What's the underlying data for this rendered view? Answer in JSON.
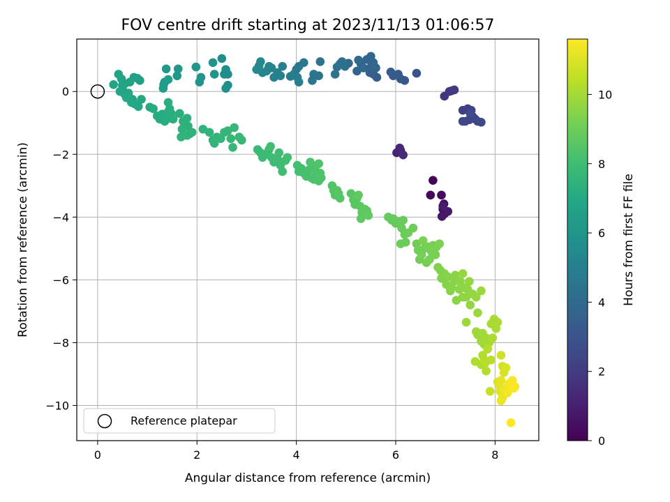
{
  "chart_data": {
    "type": "scatter",
    "title": "FOV centre drift starting at 2023/11/13 01:06:57",
    "xlabel": "Angular distance from reference (arcmin)",
    "ylabel": "Rotation from reference (arcmin)",
    "xlim": [
      -0.42,
      8.88
    ],
    "ylim": [
      -11.12,
      1.67
    ],
    "xticks": [
      0,
      2,
      4,
      6,
      8
    ],
    "yticks": [
      -10,
      -8,
      -6,
      -4,
      -2,
      0
    ],
    "grid": true,
    "legend": {
      "placement": "lower-left",
      "entries": [
        "Reference platepar"
      ]
    },
    "reference_point": {
      "name": "Reference platepar",
      "x": 0,
      "y": 0
    },
    "colorbar": {
      "label": "Hours from first FF file",
      "colormap": "viridis",
      "range": [
        0,
        11.6
      ],
      "ticks": [
        0,
        2,
        4,
        6,
        8,
        10
      ]
    },
    "points": [
      [
        6.75,
        -2.83,
        0.1
      ],
      [
        6.7,
        -3.3,
        0.2
      ],
      [
        6.92,
        -3.3,
        0.3
      ],
      [
        6.97,
        -3.58,
        0.4
      ],
      [
        6.95,
        -3.75,
        0.5
      ],
      [
        6.98,
        -3.9,
        0.6
      ],
      [
        6.93,
        -3.98,
        0.7
      ],
      [
        7.05,
        -3.82,
        0.8
      ],
      [
        6.95,
        -3.65,
        0.9
      ],
      [
        6.02,
        -1.95,
        1.1
      ],
      [
        6.08,
        -1.8,
        1.2
      ],
      [
        6.1,
        -1.88,
        1.3
      ],
      [
        6.15,
        -2.02,
        1.4
      ],
      [
        6.98,
        -0.15,
        1.7
      ],
      [
        7.08,
        0.0,
        1.8
      ],
      [
        7.12,
        0.02,
        1.9
      ],
      [
        7.18,
        0.05,
        2.0
      ],
      [
        7.35,
        -0.6,
        2.1
      ],
      [
        7.45,
        -0.55,
        2.15
      ],
      [
        7.52,
        -0.6,
        2.2
      ],
      [
        7.55,
        -0.8,
        2.25
      ],
      [
        7.48,
        -0.9,
        2.3
      ],
      [
        7.4,
        -0.95,
        2.35
      ],
      [
        7.6,
        -0.88,
        2.4
      ],
      [
        7.65,
        -0.95,
        2.45
      ],
      [
        7.72,
        -0.98,
        2.5
      ],
      [
        7.35,
        -0.95,
        2.55
      ],
      [
        7.5,
        -0.7,
        2.6
      ],
      [
        6.42,
        0.58,
        3.0
      ],
      [
        6.1,
        0.4,
        3.1
      ],
      [
        6.18,
        0.35,
        3.2
      ],
      [
        6.05,
        0.55,
        3.25
      ],
      [
        5.95,
        0.5,
        3.3
      ],
      [
        5.9,
        0.62,
        3.35
      ],
      [
        5.62,
        0.45,
        3.4
      ],
      [
        5.55,
        0.55,
        3.45
      ],
      [
        5.48,
        0.6,
        3.5
      ],
      [
        5.5,
        0.78,
        3.55
      ],
      [
        5.3,
        0.88,
        3.6
      ],
      [
        5.22,
        0.65,
        3.65
      ],
      [
        5.42,
        1.02,
        3.7
      ],
      [
        5.5,
        1.12,
        3.75
      ],
      [
        5.55,
        0.92,
        3.8
      ],
      [
        5.6,
        0.75,
        3.85
      ],
      [
        5.35,
        0.75,
        3.9
      ],
      [
        5.25,
        1.0,
        3.95
      ],
      [
        5.05,
        0.9,
        4.0
      ],
      [
        4.98,
        0.8,
        4.1
      ],
      [
        4.92,
        0.95,
        4.15
      ],
      [
        4.95,
        0.85,
        4.2
      ],
      [
        4.88,
        0.88,
        4.25
      ],
      [
        4.82,
        0.78,
        4.3
      ],
      [
        4.78,
        0.55,
        4.35
      ],
      [
        4.48,
        0.95,
        4.4
      ],
      [
        4.45,
        0.5,
        4.45
      ],
      [
        4.35,
        0.55,
        4.5
      ],
      [
        4.32,
        0.35,
        4.55
      ],
      [
        4.15,
        0.92,
        4.6
      ],
      [
        4.05,
        0.8,
        4.65
      ],
      [
        4.0,
        0.7,
        4.7
      ],
      [
        3.95,
        0.55,
        4.75
      ],
      [
        3.88,
        0.48,
        4.8
      ],
      [
        4.02,
        0.45,
        4.85
      ],
      [
        4.05,
        0.3,
        4.9
      ],
      [
        3.72,
        0.8,
        4.95
      ],
      [
        3.68,
        0.5,
        5.0
      ],
      [
        3.62,
        0.6,
        5.05
      ],
      [
        3.55,
        0.45,
        5.1
      ],
      [
        3.5,
        0.75,
        5.15
      ],
      [
        3.45,
        0.8,
        5.2
      ],
      [
        3.4,
        0.65,
        5.25
      ],
      [
        3.32,
        0.6,
        5.3
      ],
      [
        3.28,
        0.95,
        5.35
      ],
      [
        3.25,
        0.82,
        5.4
      ],
      [
        3.2,
        0.7,
        5.45
      ],
      [
        2.62,
        0.55,
        5.55
      ],
      [
        2.58,
        0.7,
        5.6
      ],
      [
        2.55,
        0.55,
        5.65
      ],
      [
        2.5,
        1.05,
        5.7
      ],
      [
        2.62,
        0.2,
        5.75
      ],
      [
        2.58,
        0.1,
        5.8
      ],
      [
        2.32,
        0.92,
        5.85
      ],
      [
        2.35,
        0.55,
        5.9
      ],
      [
        2.08,
        0.45,
        5.95
      ],
      [
        2.05,
        0.3,
        6.0
      ],
      [
        1.98,
        0.78,
        6.05
      ],
      [
        1.62,
        0.72,
        6.1
      ],
      [
        1.6,
        0.5,
        6.15
      ],
      [
        1.38,
        0.72,
        6.2
      ],
      [
        1.35,
        0.3,
        6.25
      ],
      [
        1.33,
        0.22,
        6.3
      ],
      [
        1.32,
        0.1,
        6.35
      ],
      [
        1.42,
        0.38,
        6.4
      ],
      [
        0.8,
        0.42,
        6.5
      ],
      [
        0.85,
        0.35,
        6.55
      ],
      [
        0.73,
        0.45,
        6.6
      ],
      [
        0.65,
        0.3,
        6.65
      ],
      [
        0.55,
        0.25,
        6.7
      ],
      [
        0.5,
        0.2,
        6.72
      ],
      [
        0.48,
        0.4,
        6.74
      ],
      [
        0.42,
        0.55,
        6.76
      ],
      [
        0.32,
        0.22,
        6.78
      ],
      [
        0.45,
        0.0,
        6.8
      ],
      [
        0.5,
        0.1,
        6.82
      ],
      [
        0.55,
        -0.1,
        6.85
      ],
      [
        0.58,
        -0.2,
        6.88
      ],
      [
        0.62,
        -0.05,
        6.9
      ],
      [
        0.7,
        -0.25,
        6.92
      ],
      [
        0.75,
        -0.4,
        6.94
      ],
      [
        0.82,
        -0.48,
        6.96
      ],
      [
        0.88,
        -0.25,
        6.98
      ],
      [
        0.68,
        -0.35,
        7.0
      ],
      [
        0.6,
        -0.2,
        7.02
      ],
      [
        1.05,
        -0.5,
        7.05
      ],
      [
        1.12,
        -0.55,
        7.08
      ],
      [
        1.2,
        -0.78,
        7.1
      ],
      [
        1.25,
        -0.88,
        7.12
      ],
      [
        1.3,
        -0.72,
        7.14
      ],
      [
        1.35,
        -0.95,
        7.16
      ],
      [
        1.42,
        -0.65,
        7.18
      ],
      [
        1.45,
        -0.85,
        7.2
      ],
      [
        1.48,
        -0.7,
        7.22
      ],
      [
        1.52,
        -0.88,
        7.24
      ],
      [
        1.42,
        -0.35,
        7.26
      ],
      [
        1.45,
        -0.55,
        7.28
      ],
      [
        1.65,
        -0.7,
        7.3
      ],
      [
        1.72,
        -0.95,
        7.32
      ],
      [
        1.75,
        -1.05,
        7.34
      ],
      [
        1.8,
        -0.85,
        7.36
      ],
      [
        1.82,
        -1.1,
        7.38
      ],
      [
        1.7,
        -1.2,
        7.4
      ],
      [
        1.85,
        -1.35,
        7.42
      ],
      [
        1.8,
        -1.4,
        7.44
      ],
      [
        1.68,
        -1.45,
        7.46
      ],
      [
        1.9,
        -1.3,
        7.48
      ],
      [
        2.12,
        -1.2,
        7.5
      ],
      [
        2.25,
        -1.3,
        7.52
      ],
      [
        2.32,
        -1.55,
        7.54
      ],
      [
        2.35,
        -1.65,
        7.56
      ],
      [
        2.4,
        -1.45,
        7.58
      ],
      [
        2.48,
        -1.5,
        7.6
      ],
      [
        2.55,
        -1.3,
        7.62
      ],
      [
        2.62,
        -1.25,
        7.64
      ],
      [
        2.68,
        -1.5,
        7.66
      ],
      [
        2.72,
        -1.78,
        7.68
      ],
      [
        2.75,
        -1.15,
        7.7
      ],
      [
        2.85,
        -1.45,
        7.72
      ],
      [
        2.9,
        -1.55,
        7.74
      ],
      [
        3.22,
        -1.85,
        7.8
      ],
      [
        3.28,
        -1.95,
        7.82
      ],
      [
        3.32,
        -2.1,
        7.84
      ],
      [
        3.38,
        -2.0,
        7.86
      ],
      [
        3.45,
        -1.85,
        7.88
      ],
      [
        3.5,
        -2.1,
        7.9
      ],
      [
        3.55,
        -2.25,
        7.92
      ],
      [
        3.62,
        -2.15,
        7.94
      ],
      [
        3.65,
        -1.95,
        7.96
      ],
      [
        3.68,
        -2.35,
        7.98
      ],
      [
        3.72,
        -2.55,
        8.0
      ],
      [
        3.78,
        -2.2,
        8.02
      ],
      [
        3.82,
        -2.1,
        8.04
      ],
      [
        3.48,
        -1.75,
        8.06
      ],
      [
        4.02,
        -2.35,
        8.1
      ],
      [
        4.05,
        -2.55,
        8.12
      ],
      [
        4.1,
        -2.45,
        8.14
      ],
      [
        4.15,
        -2.6,
        8.16
      ],
      [
        4.2,
        -2.7,
        8.18
      ],
      [
        4.25,
        -2.5,
        8.2
      ],
      [
        4.3,
        -2.75,
        8.22
      ],
      [
        4.35,
        -2.8,
        8.24
      ],
      [
        4.4,
        -2.55,
        8.26
      ],
      [
        4.45,
        -2.85,
        8.28
      ],
      [
        4.48,
        -2.6,
        8.3
      ],
      [
        4.28,
        -2.25,
        8.32
      ],
      [
        4.35,
        -2.45,
        8.34
      ],
      [
        4.45,
        -2.3,
        8.36
      ],
      [
        4.5,
        -2.75,
        8.38
      ],
      [
        4.72,
        -3.0,
        8.42
      ],
      [
        4.75,
        -3.15,
        8.44
      ],
      [
        4.78,
        -3.3,
        8.46
      ],
      [
        4.82,
        -3.15,
        8.48
      ],
      [
        4.88,
        -3.4,
        8.5
      ],
      [
        4.85,
        -3.25,
        8.52
      ],
      [
        5.1,
        -3.25,
        8.56
      ],
      [
        5.15,
        -3.45,
        8.58
      ],
      [
        5.18,
        -3.6,
        8.6
      ],
      [
        5.22,
        -3.4,
        8.62
      ],
      [
        5.28,
        -3.65,
        8.64
      ],
      [
        5.32,
        -3.85,
        8.66
      ],
      [
        5.3,
        -4.05,
        8.68
      ],
      [
        5.38,
        -3.75,
        8.7
      ],
      [
        5.42,
        -3.8,
        8.72
      ],
      [
        5.45,
        -3.95,
        8.74
      ],
      [
        5.25,
        -3.3,
        8.76
      ],
      [
        5.85,
        -4.0,
        8.8
      ],
      [
        5.92,
        -4.1,
        8.82
      ],
      [
        5.95,
        -4.05,
        8.84
      ],
      [
        6.0,
        -4.2,
        8.86
      ],
      [
        6.05,
        -4.15,
        8.88
      ],
      [
        6.12,
        -4.35,
        8.9
      ],
      [
        6.15,
        -4.1,
        8.92
      ],
      [
        6.18,
        -4.55,
        8.94
      ],
      [
        6.1,
        -4.85,
        8.96
      ],
      [
        6.2,
        -4.8,
        8.98
      ],
      [
        6.25,
        -4.5,
        9.0
      ],
      [
        6.35,
        -4.35,
        9.02
      ],
      [
        6.42,
        -4.85,
        9.05
      ],
      [
        6.45,
        -5.05,
        9.08
      ],
      [
        6.48,
        -5.35,
        9.1
      ],
      [
        6.52,
        -5.2,
        9.12
      ],
      [
        6.58,
        -5.0,
        9.14
      ],
      [
        6.62,
        -5.45,
        9.16
      ],
      [
        6.65,
        -4.95,
        9.18
      ],
      [
        6.68,
        -5.35,
        9.2
      ],
      [
        6.72,
        -5.1,
        9.22
      ],
      [
        6.75,
        -4.9,
        9.24
      ],
      [
        6.8,
        -5.2,
        9.26
      ],
      [
        6.82,
        -4.95,
        9.28
      ],
      [
        6.88,
        -4.85,
        9.3
      ],
      [
        6.55,
        -4.75,
        9.32
      ],
      [
        6.85,
        -5.6,
        9.36
      ],
      [
        6.9,
        -5.7,
        9.38
      ],
      [
        6.92,
        -5.95,
        9.4
      ],
      [
        6.98,
        -5.8,
        9.42
      ],
      [
        7.02,
        -6.15,
        9.44
      ],
      [
        7.05,
        -5.9,
        9.46
      ],
      [
        7.1,
        -6.35,
        9.48
      ],
      [
        7.12,
        -6.25,
        9.5
      ],
      [
        7.18,
        -6.05,
        9.52
      ],
      [
        7.2,
        -5.85,
        9.54
      ],
      [
        7.22,
        -6.65,
        9.56
      ],
      [
        7.28,
        -6.3,
        9.58
      ],
      [
        7.3,
        -6.05,
        9.6
      ],
      [
        7.35,
        -6.55,
        9.62
      ],
      [
        7.38,
        -6.25,
        9.64
      ],
      [
        7.42,
        -6.55,
        9.66
      ],
      [
        7.45,
        -6.3,
        9.68
      ],
      [
        7.48,
        -6.05,
        9.7
      ],
      [
        7.5,
        -6.8,
        9.72
      ],
      [
        7.55,
        -6.45,
        9.74
      ],
      [
        7.35,
        -5.8,
        9.76
      ],
      [
        7.62,
        -6.55,
        9.8
      ],
      [
        7.72,
        -6.35,
        9.82
      ],
      [
        7.65,
        -7.05,
        9.84
      ],
      [
        7.42,
        -7.35,
        9.86
      ],
      [
        7.62,
        -7.65,
        9.9
      ],
      [
        7.65,
        -7.75,
        9.92
      ],
      [
        7.72,
        -7.95,
        9.94
      ],
      [
        7.75,
        -7.7,
        9.96
      ],
      [
        7.78,
        -8.05,
        9.98
      ],
      [
        7.82,
        -7.85,
        10.0
      ],
      [
        7.85,
        -8.2,
        10.02
      ],
      [
        7.88,
        -8.0,
        10.04
      ],
      [
        7.92,
        -7.4,
        10.06
      ],
      [
        7.98,
        -7.25,
        10.08
      ],
      [
        8.02,
        -7.55,
        10.1
      ],
      [
        8.05,
        -7.35,
        10.12
      ],
      [
        7.95,
        -7.85,
        10.14
      ],
      [
        7.6,
        -8.6,
        10.2
      ],
      [
        7.72,
        -8.7,
        10.22
      ],
      [
        7.75,
        -8.4,
        10.24
      ],
      [
        7.78,
        -8.55,
        10.26
      ],
      [
        7.82,
        -8.9,
        10.28
      ],
      [
        7.85,
        -8.2,
        10.3
      ],
      [
        7.92,
        -8.55,
        10.32
      ],
      [
        7.8,
        -8.65,
        10.34
      ],
      [
        8.12,
        -8.4,
        10.8
      ],
      [
        8.15,
        -8.75,
        10.85
      ],
      [
        8.18,
        -8.95,
        10.9
      ],
      [
        8.22,
        -8.8,
        10.95
      ],
      [
        8.05,
        -9.25,
        11.0
      ],
      [
        8.08,
        -9.35,
        11.05
      ],
      [
        8.1,
        -9.55,
        11.1
      ],
      [
        8.12,
        -9.2,
        11.15
      ],
      [
        8.15,
        -9.75,
        11.2
      ],
      [
        8.12,
        -9.85,
        11.25
      ],
      [
        8.18,
        -9.5,
        11.3
      ],
      [
        8.22,
        -9.45,
        11.35
      ],
      [
        8.25,
        -9.6,
        11.4
      ],
      [
        8.28,
        -9.3,
        11.45
      ],
      [
        8.32,
        -9.4,
        11.5
      ],
      [
        8.35,
        -9.2,
        11.52
      ],
      [
        8.38,
        -9.45,
        11.55
      ],
      [
        8.4,
        -9.4,
        11.57
      ],
      [
        8.32,
        -10.55,
        11.6
      ],
      [
        7.9,
        -9.55,
        10.6
      ]
    ]
  }
}
